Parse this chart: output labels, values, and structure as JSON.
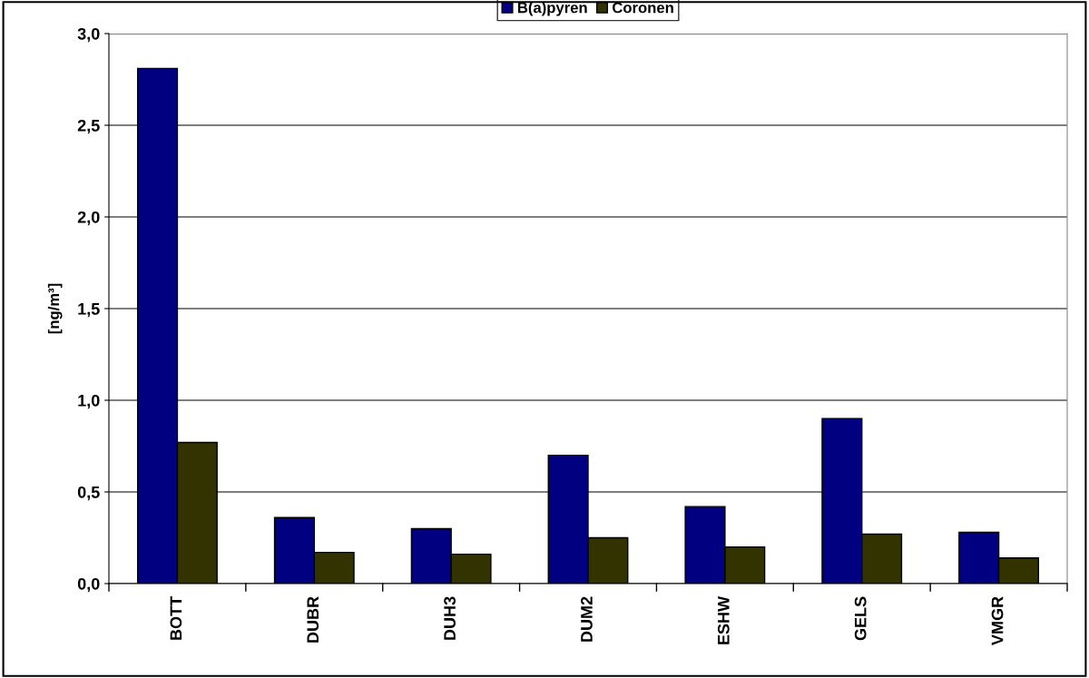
{
  "chart_data": {
    "type": "bar",
    "ylabel": "[ng/m³]",
    "categories": [
      "BOTT",
      "DUBR",
      "DUH3",
      "DUM2",
      "ESHW",
      "GELS",
      "VMGR"
    ],
    "series": [
      {
        "name": "B(a)pyren",
        "color": "#000080",
        "values": [
          2.81,
          0.36,
          0.3,
          0.7,
          0.42,
          0.9,
          0.28
        ]
      },
      {
        "name": "Coronen",
        "color": "#333300",
        "values": [
          0.77,
          0.17,
          0.16,
          0.25,
          0.2,
          0.27,
          0.14
        ]
      }
    ],
    "ylim": [
      0,
      3.0
    ],
    "yticks": [
      {
        "value": 0,
        "label": "0,0"
      },
      {
        "value": 0.5,
        "label": "0,5"
      },
      {
        "value": 1.0,
        "label": "1,0"
      },
      {
        "value": 1.5,
        "label": "1,5"
      },
      {
        "value": 2.0,
        "label": "2,0"
      },
      {
        "value": 2.5,
        "label": "2,5"
      },
      {
        "value": 3.0,
        "label": "3,0"
      }
    ],
    "grid": "y",
    "legend": "top"
  }
}
